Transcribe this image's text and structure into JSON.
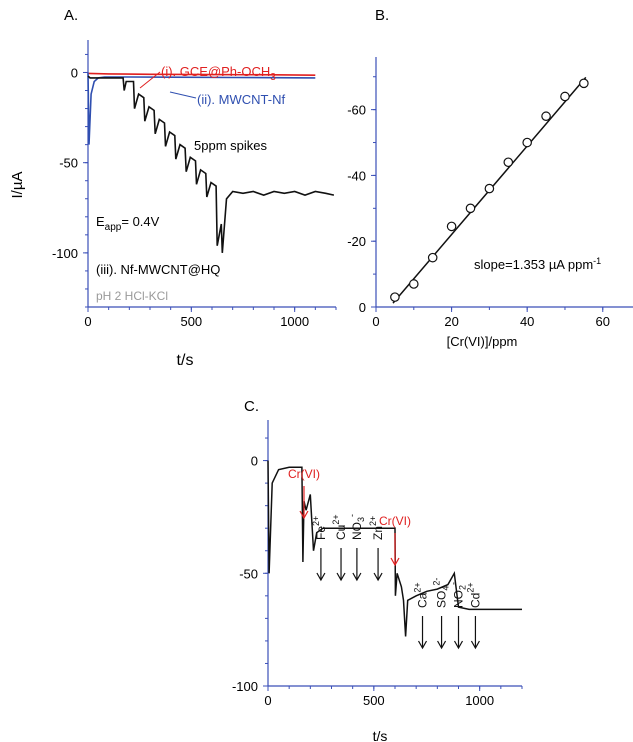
{
  "chart_data": [
    {
      "type": "line",
      "panel_label": "A.",
      "xlabel": "t/s",
      "ylabel": "I/µA",
      "xlim": [
        0,
        1200
      ],
      "ylim": [
        -130,
        18
      ],
      "x_ticks": [
        0,
        500,
        1000
      ],
      "y_ticks": [
        0,
        -50,
        -100
      ],
      "series": [
        {
          "name": "(i). GCE@Ph-OCH3",
          "color": "#e02020",
          "x": [
            0,
            5,
            100,
            300,
            600,
            900,
            1100
          ],
          "y": [
            -0.5,
            -0.5,
            -0.8,
            -1.0,
            -1.2,
            -1.3,
            -1.5
          ]
        },
        {
          "name": "(ii). MWCNT-Nf",
          "color": "#2f4fb0",
          "x": [
            0,
            5,
            15,
            30,
            50,
            80,
            120,
            200,
            400,
            700,
            1100
          ],
          "y": [
            0,
            -40,
            -12,
            -5,
            -3,
            -2.5,
            -2.5,
            -2.5,
            -2.6,
            -2.8,
            -3.0
          ]
        },
        {
          "name": "(iii). Nf-MWCNT@HQ",
          "color": "#111111",
          "spikes_ppm": 5,
          "x": [
            0,
            10,
            40,
            100,
            170,
            175,
            185,
            220,
            225,
            245,
            270,
            275,
            295,
            320,
            325,
            345,
            370,
            375,
            395,
            420,
            425,
            445,
            470,
            475,
            495,
            520,
            525,
            545,
            570,
            575,
            595,
            620,
            625,
            645,
            650,
            670,
            700,
            750,
            800,
            850,
            900,
            950,
            1000,
            1050,
            1100,
            1150,
            1190
          ],
          "y": [
            -2,
            -3,
            -3,
            -3,
            -3,
            -10,
            -5,
            -5,
            -20,
            -12,
            -14,
            -27,
            -19,
            -21,
            -34,
            -26,
            -28,
            -41,
            -33,
            -35,
            -48,
            -40,
            -42,
            -55,
            -47,
            -49,
            -62,
            -54,
            -56,
            -69,
            -61,
            -63,
            -96,
            -84,
            -100,
            -70,
            -66,
            -67,
            -66,
            -68,
            -66,
            -67,
            -66,
            -68,
            -66,
            -67,
            -68
          ]
        }
      ],
      "annotations": [
        {
          "text": "5ppm spikes"
        },
        {
          "text": "pH 2 HCl-KCl",
          "color": "#9a9a9a"
        }
      ],
      "eapp_main": "E",
      "eapp_sub": "app",
      "eapp_rest": "= 0.4V"
    },
    {
      "type": "scatter",
      "panel_label": "B.",
      "xlabel": "[Cr(VI)]/ppm",
      "ylabel": "",
      "xlim": [
        0,
        68
      ],
      "ylim": [
        0,
        -76
      ],
      "x_ticks": [
        0,
        20,
        40,
        60
      ],
      "y_ticks": [
        0,
        -20,
        -40,
        -60
      ],
      "x": [
        5,
        10,
        15,
        20,
        25,
        30,
        35,
        40,
        45,
        50,
        55
      ],
      "y": [
        -3,
        -7,
        -15,
        -24.5,
        -30,
        -36,
        -44,
        -50,
        -58,
        -64,
        -68
      ],
      "fit_line": {
        "x": [
          4.5,
          55.5
        ],
        "y": [
          -1.2,
          -69.8
        ]
      },
      "slope_label": "slope=1.353 µA ppm",
      "slope_sup": "-1"
    },
    {
      "type": "line",
      "panel_label": "C.",
      "xlabel": "t/s",
      "ylabel": "",
      "xlim": [
        0,
        1200
      ],
      "ylim": [
        -100,
        18
      ],
      "x_ticks": [
        0,
        500,
        1000
      ],
      "y_ticks": [
        0,
        -50,
        -100
      ],
      "series": [
        {
          "name": "",
          "color": "#111111",
          "x": [
            0,
            5,
            20,
            50,
            100,
            160,
            165,
            170,
            180,
            200,
            215,
            230,
            260,
            300,
            350,
            400,
            450,
            500,
            550,
            600,
            602,
            610,
            630,
            640,
            650,
            660,
            700,
            750,
            800,
            850,
            880,
            900,
            950,
            1000,
            1050,
            1100,
            1150,
            1200
          ],
          "y": [
            0,
            -50,
            -10,
            -4,
            -3,
            -3,
            -45,
            -18,
            -22,
            -15,
            -40,
            -32,
            -30,
            -30,
            -30,
            -30,
            -30,
            -30,
            -30,
            -30,
            -60,
            -50,
            -56,
            -62,
            -78,
            -62,
            -60,
            -58,
            -57,
            -55,
            -50,
            -65,
            -66,
            -66,
            -66,
            -66,
            -66,
            -66
          ]
        }
      ],
      "annotations": [
        {
          "text": "Cr(VI)",
          "color": "#e02020",
          "x": 170
        },
        {
          "text": "Fe",
          "sup": "2+",
          "x": 250
        },
        {
          "text": "Cu",
          "sup": "2+",
          "x": 345
        },
        {
          "text": "NO",
          "sub": "3",
          "sup": "-",
          "x": 420
        },
        {
          "text": "Zn",
          "sup": "2+",
          "x": 520
        },
        {
          "text": "Cr(VI)",
          "color": "#e02020",
          "x": 600
        },
        {
          "text": "Ca",
          "sup": "2+",
          "x": 730
        },
        {
          "text": "SO",
          "sub": "4",
          "sup": "2-",
          "x": 820
        },
        {
          "text": "NO",
          "sub": "2",
          "sup": "-",
          "x": 900
        },
        {
          "text": "Cd",
          "sup": "2+",
          "x": 980
        }
      ]
    }
  ],
  "legend": {
    "series_i_prefix": "(i). GCE@Ph-OCH",
    "series_i_sub": "3",
    "series_ii": "(ii). MWCNT-Nf",
    "series_iii": "(iii). Nf-MWCNT@HQ"
  },
  "colors": {
    "axis": "#3b4fb8",
    "red": "#e02020",
    "black": "#111111",
    "gray": "#9a9a9a"
  }
}
